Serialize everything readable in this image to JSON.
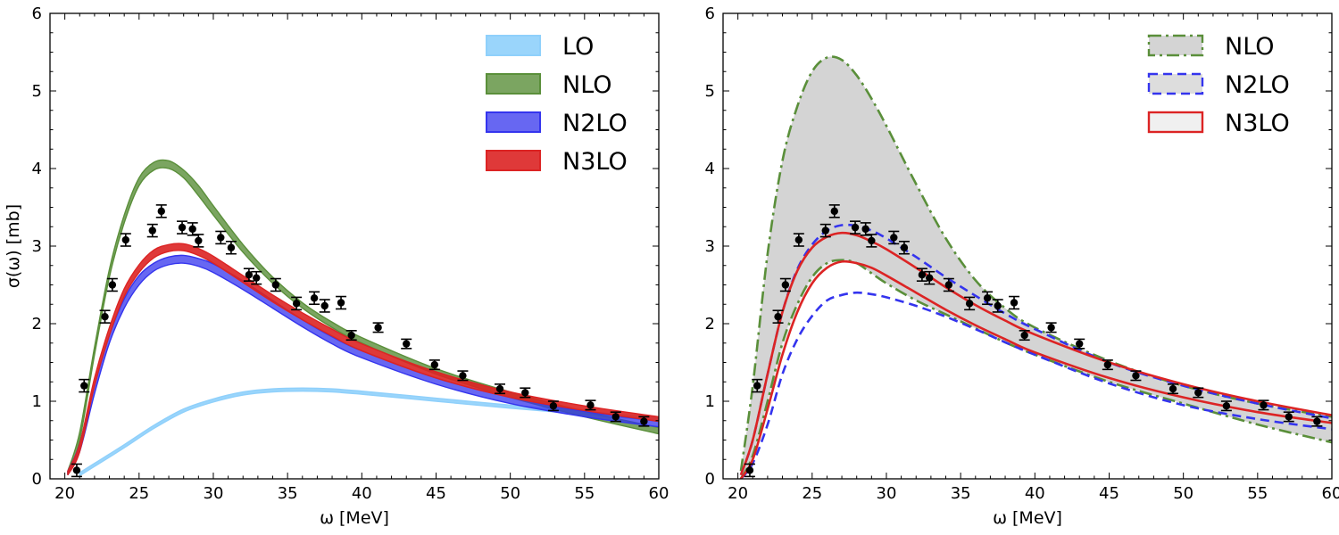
{
  "colors": {
    "lo": "#8fd0fb",
    "nlo": "#5a8f3a",
    "n2lo": "#3434ee",
    "n3lo": "#dc2424",
    "band_grey": "#d4d4d4",
    "data_point": "#000000"
  },
  "chart_data": [
    {
      "type": "line",
      "panel": "left",
      "title": "",
      "xlabel": "ω  [MeV]",
      "ylabel": "σ(ω)  [mb]",
      "xlim": [
        19,
        60
      ],
      "ylim": [
        0,
        6
      ],
      "xticks": [
        20,
        25,
        30,
        35,
        40,
        45,
        50,
        55,
        60
      ],
      "yticks": [
        0,
        1,
        2,
        3,
        4,
        5,
        6
      ],
      "legend_position": "top-right",
      "legend": [
        "LO",
        "NLO",
        "N2LO",
        "N3LO"
      ],
      "series": [
        {
          "name": "LO",
          "style": "band",
          "x": [
            21,
            22,
            24,
            26,
            28,
            30,
            32,
            34,
            36,
            38,
            40,
            45,
            50,
            55,
            60
          ],
          "lower": [
            0.04,
            0.16,
            0.4,
            0.65,
            0.86,
            0.99,
            1.08,
            1.12,
            1.13,
            1.12,
            1.09,
            1.0,
            0.91,
            0.83,
            0.75
          ],
          "upper": [
            0.08,
            0.2,
            0.44,
            0.69,
            0.9,
            1.03,
            1.12,
            1.16,
            1.17,
            1.16,
            1.13,
            1.04,
            0.95,
            0.87,
            0.79
          ]
        },
        {
          "name": "NLO",
          "style": "band",
          "x": [
            20.2,
            21,
            22,
            23,
            24,
            25,
            26,
            27,
            28,
            29,
            30,
            32,
            34,
            36,
            38,
            40,
            45,
            50,
            55,
            60
          ],
          "lower": [
            0.05,
            0.5,
            1.6,
            2.6,
            3.3,
            3.78,
            3.98,
            4.0,
            3.88,
            3.65,
            3.4,
            2.92,
            2.52,
            2.2,
            1.95,
            1.75,
            1.35,
            1.05,
            0.8,
            0.58
          ],
          "upper": [
            0.1,
            0.6,
            1.7,
            2.7,
            3.4,
            3.88,
            4.08,
            4.1,
            3.98,
            3.78,
            3.52,
            3.02,
            2.6,
            2.27,
            2.02,
            1.82,
            1.42,
            1.12,
            0.87,
            0.66
          ]
        },
        {
          "name": "N2LO",
          "style": "band",
          "x": [
            20.2,
            21,
            22,
            23,
            24,
            25,
            26,
            27,
            28,
            29,
            30,
            32,
            34,
            36,
            38,
            40,
            45,
            50,
            55,
            60
          ],
          "lower": [
            0.05,
            0.35,
            1.1,
            1.75,
            2.2,
            2.5,
            2.68,
            2.76,
            2.78,
            2.74,
            2.66,
            2.44,
            2.2,
            1.96,
            1.74,
            1.56,
            1.22,
            0.97,
            0.8,
            0.67
          ],
          "upper": [
            0.1,
            0.45,
            1.2,
            1.85,
            2.32,
            2.62,
            2.78,
            2.86,
            2.88,
            2.84,
            2.77,
            2.55,
            2.3,
            2.05,
            1.83,
            1.65,
            1.3,
            1.05,
            0.87,
            0.74
          ]
        },
        {
          "name": "N3LO",
          "style": "band",
          "x": [
            20.2,
            21,
            22,
            23,
            24,
            25,
            26,
            27,
            28,
            29,
            30,
            32,
            34,
            36,
            38,
            40,
            45,
            50,
            55,
            60
          ],
          "lower": [
            0.05,
            0.35,
            1.2,
            1.85,
            2.35,
            2.66,
            2.85,
            2.93,
            2.94,
            2.88,
            2.78,
            2.53,
            2.28,
            2.05,
            1.84,
            1.65,
            1.3,
            1.05,
            0.88,
            0.74
          ],
          "upper": [
            0.1,
            0.45,
            1.3,
            1.95,
            2.45,
            2.76,
            2.95,
            3.02,
            3.03,
            2.97,
            2.87,
            2.62,
            2.37,
            2.14,
            1.93,
            1.74,
            1.38,
            1.12,
            0.94,
            0.8
          ]
        }
      ],
      "data_points": {
        "name": "data",
        "x": [
          20.8,
          21.3,
          22.7,
          23.2,
          24.1,
          25.9,
          26.5,
          27.9,
          28.6,
          29.0,
          30.5,
          31.2,
          32.4,
          32.9,
          34.2,
          35.6,
          36.8,
          37.5,
          38.6,
          39.3,
          41.1,
          43.0,
          44.9,
          46.8,
          49.3,
          51.0,
          52.9,
          55.4,
          57.1,
          59.0
        ],
        "y": [
          0.11,
          1.2,
          2.09,
          2.5,
          3.08,
          3.2,
          3.45,
          3.24,
          3.22,
          3.07,
          3.11,
          2.98,
          2.63,
          2.59,
          2.5,
          2.26,
          2.33,
          2.23,
          2.27,
          1.85,
          1.95,
          1.74,
          1.47,
          1.33,
          1.16,
          1.11,
          0.94,
          0.95,
          0.8,
          0.74
        ],
        "err": [
          0.08,
          0.08,
          0.08,
          0.08,
          0.08,
          0.08,
          0.08,
          0.08,
          0.08,
          0.08,
          0.08,
          0.08,
          0.08,
          0.08,
          0.08,
          0.08,
          0.08,
          0.08,
          0.08,
          0.06,
          0.06,
          0.06,
          0.06,
          0.06,
          0.06,
          0.06,
          0.06,
          0.06,
          0.06,
          0.06
        ]
      }
    },
    {
      "type": "line",
      "panel": "right",
      "title": "",
      "xlabel": "ω  [MeV]",
      "ylabel": "",
      "xlim": [
        19,
        60
      ],
      "ylim": [
        0,
        6
      ],
      "xticks": [
        20,
        25,
        30,
        35,
        40,
        45,
        50,
        55,
        60
      ],
      "yticks": [
        0,
        1,
        2,
        3,
        4,
        5,
        6
      ],
      "legend_position": "top-right",
      "legend": [
        "NLO",
        "N2LO",
        "N3LO"
      ],
      "series": [
        {
          "name": "NLO",
          "style": "dashdot-envelope",
          "x": [
            20.2,
            21,
            22,
            23,
            24,
            25,
            26,
            27,
            28,
            29,
            30,
            32,
            34,
            36,
            38,
            40,
            45,
            50,
            55,
            60
          ],
          "lower": [
            0.0,
            0.3,
            1.0,
            1.75,
            2.25,
            2.6,
            2.78,
            2.82,
            2.78,
            2.65,
            2.52,
            2.3,
            2.12,
            1.94,
            1.76,
            1.6,
            1.25,
            0.97,
            0.7,
            0.47
          ],
          "upper": [
            0.1,
            1.2,
            2.9,
            4.1,
            4.8,
            5.25,
            5.43,
            5.4,
            5.2,
            4.9,
            4.55,
            3.8,
            3.1,
            2.56,
            2.2,
            1.95,
            1.52,
            1.2,
            0.97,
            0.8
          ]
        },
        {
          "name": "N2LO",
          "style": "dashed-envelope",
          "x": [
            20.2,
            21,
            22,
            23,
            24,
            25,
            26,
            27,
            28,
            29,
            30,
            32,
            34,
            36,
            38,
            40,
            45,
            50,
            55,
            60
          ],
          "lower": [
            0.0,
            0.2,
            0.7,
            1.35,
            1.8,
            2.1,
            2.3,
            2.37,
            2.4,
            2.38,
            2.34,
            2.23,
            2.09,
            1.93,
            1.76,
            1.6,
            1.23,
            0.95,
            0.77,
            0.64
          ],
          "upper": [
            0.05,
            0.5,
            1.35,
            2.15,
            2.7,
            3.02,
            3.2,
            3.27,
            3.26,
            3.2,
            3.1,
            2.86,
            2.6,
            2.36,
            2.13,
            1.93,
            1.5,
            1.2,
            0.97,
            0.78
          ]
        },
        {
          "name": "N3LO",
          "style": "solid-envelope",
          "x": [
            20.2,
            21,
            22,
            23,
            24,
            25,
            26,
            27,
            28,
            29,
            30,
            32,
            34,
            36,
            38,
            40,
            45,
            50,
            55,
            60
          ],
          "lower": [
            0.0,
            0.25,
            0.9,
            1.6,
            2.15,
            2.52,
            2.72,
            2.8,
            2.78,
            2.72,
            2.62,
            2.4,
            2.18,
            1.98,
            1.8,
            1.63,
            1.3,
            1.05,
            0.86,
            0.72
          ],
          "upper": [
            0.05,
            0.5,
            1.35,
            2.15,
            2.68,
            2.98,
            3.12,
            3.17,
            3.14,
            3.06,
            2.96,
            2.72,
            2.47,
            2.24,
            2.04,
            1.86,
            1.5,
            1.22,
            1.0,
            0.82
          ]
        }
      ],
      "data_points": {
        "name": "data",
        "x": [
          20.8,
          21.3,
          22.7,
          23.2,
          24.1,
          25.9,
          26.5,
          27.9,
          28.6,
          29.0,
          30.5,
          31.2,
          32.4,
          32.9,
          34.2,
          35.6,
          36.8,
          37.5,
          38.6,
          39.3,
          41.1,
          43.0,
          44.9,
          46.8,
          49.3,
          51.0,
          52.9,
          55.4,
          57.1,
          59.0
        ],
        "y": [
          0.11,
          1.2,
          2.09,
          2.5,
          3.08,
          3.2,
          3.45,
          3.24,
          3.22,
          3.07,
          3.11,
          2.98,
          2.63,
          2.59,
          2.5,
          2.26,
          2.33,
          2.23,
          2.27,
          1.85,
          1.95,
          1.74,
          1.47,
          1.33,
          1.16,
          1.11,
          0.94,
          0.95,
          0.8,
          0.74
        ],
        "err": [
          0.08,
          0.08,
          0.08,
          0.08,
          0.08,
          0.08,
          0.08,
          0.08,
          0.08,
          0.08,
          0.08,
          0.08,
          0.08,
          0.08,
          0.08,
          0.08,
          0.08,
          0.08,
          0.08,
          0.06,
          0.06,
          0.06,
          0.06,
          0.06,
          0.06,
          0.06,
          0.06,
          0.06,
          0.06,
          0.06
        ]
      }
    }
  ]
}
